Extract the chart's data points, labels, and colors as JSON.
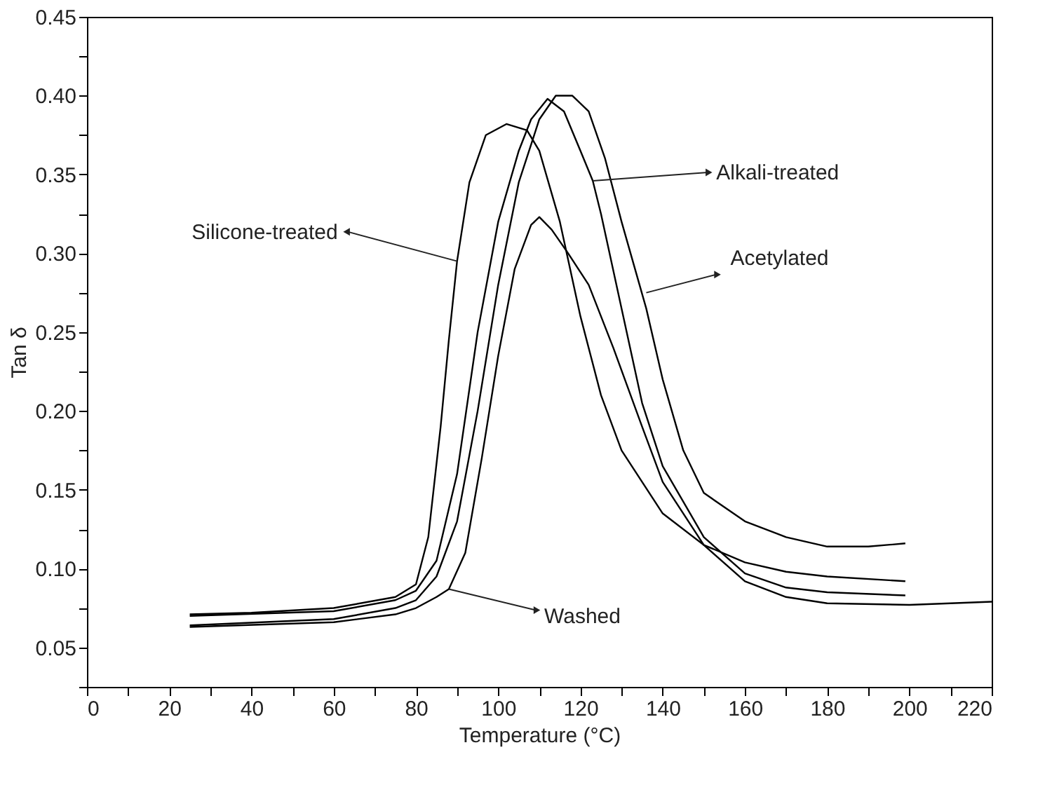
{
  "chart_data": {
    "type": "line",
    "xlabel": "Temperature (°C)",
    "ylabel": "Tan δ",
    "xlim": [
      0,
      220
    ],
    "ylim": [
      0.025,
      0.45
    ],
    "xticks": [
      0,
      {
        "value": 10,
        "label": null
      },
      20,
      {
        "value": 30,
        "label": null
      },
      40,
      {
        "value": 50,
        "label": null
      },
      60,
      {
        "value": 70,
        "label": null
      },
      80,
      {
        "value": 90,
        "label": null
      },
      100,
      {
        "value": 110,
        "label": null
      },
      120,
      {
        "value": 130,
        "label": null
      },
      140,
      {
        "value": 150,
        "label": null
      },
      160,
      {
        "value": 170,
        "label": null
      },
      180,
      {
        "value": 190,
        "label": null
      },
      200,
      {
        "value": 210,
        "label": null
      },
      220
    ],
    "yticks": [
      {
        "value": 0.025,
        "label": null
      },
      {
        "value": 0.05,
        "label": "0.05"
      },
      {
        "value": 0.075,
        "label": null
      },
      {
        "value": 0.1,
        "label": "0.10"
      },
      {
        "value": 0.125,
        "label": null
      },
      {
        "value": 0.15,
        "label": "0.15"
      },
      {
        "value": 0.175,
        "label": null
      },
      {
        "value": 0.2,
        "label": "0.20"
      },
      {
        "value": 0.225,
        "label": null
      },
      {
        "value": 0.25,
        "label": "0.25"
      },
      {
        "value": 0.275,
        "label": null
      },
      {
        "value": 0.3,
        "label": "0.30"
      },
      {
        "value": 0.325,
        "label": null
      },
      {
        "value": 0.35,
        "label": "0.35"
      },
      {
        "value": 0.375,
        "label": null
      },
      {
        "value": 0.4,
        "label": "0.40"
      },
      {
        "value": 0.425,
        "label": null
      },
      {
        "value": 0.45,
        "label": "0.45"
      }
    ],
    "line_style": "solid",
    "grid": false,
    "series": [
      {
        "color": "#000000",
        "x": [
          25,
          40,
          60,
          75,
          80,
          83,
          86,
          88,
          90,
          93,
          97,
          102,
          107,
          110,
          115,
          120,
          125,
          130,
          140,
          150,
          160,
          170,
          180,
          199
        ],
        "values": [
          0.071,
          0.072,
          0.075,
          0.082,
          0.09,
          0.12,
          0.19,
          0.245,
          0.295,
          0.345,
          0.375,
          0.382,
          0.378,
          0.365,
          0.32,
          0.26,
          0.21,
          0.175,
          0.135,
          0.115,
          0.104,
          0.098,
          0.095,
          0.092
        ]
      },
      {
        "color": "#000000",
        "x": [
          25,
          60,
          75,
          80,
          85,
          90,
          95,
          100,
          105,
          108,
          112,
          116,
          120,
          123,
          125,
          130,
          135,
          140,
          150,
          160,
          170,
          180,
          199
        ],
        "values": [
          0.07,
          0.073,
          0.08,
          0.086,
          0.105,
          0.16,
          0.25,
          0.32,
          0.365,
          0.385,
          0.398,
          0.39,
          0.365,
          0.346,
          0.325,
          0.265,
          0.205,
          0.165,
          0.12,
          0.097,
          0.088,
          0.085,
          0.083
        ]
      },
      {
        "color": "#000000",
        "x": [
          25,
          60,
          75,
          80,
          85,
          90,
          95,
          100,
          105,
          110,
          114,
          118,
          122,
          126,
          130,
          136,
          140,
          145,
          150,
          160,
          170,
          180,
          190,
          199
        ],
        "values": [
          0.064,
          0.068,
          0.075,
          0.08,
          0.095,
          0.13,
          0.2,
          0.28,
          0.345,
          0.385,
          0.4,
          0.4,
          0.39,
          0.36,
          0.32,
          0.265,
          0.22,
          0.175,
          0.148,
          0.13,
          0.12,
          0.114,
          0.114,
          0.116
        ]
      },
      {
        "color": "#000000",
        "x": [
          25,
          60,
          75,
          80,
          85,
          88,
          92,
          96,
          100,
          104,
          108,
          110,
          113,
          117,
          122,
          128,
          135,
          140,
          150,
          160,
          170,
          180,
          200,
          220
        ],
        "values": [
          0.063,
          0.066,
          0.071,
          0.075,
          0.082,
          0.087,
          0.11,
          0.17,
          0.235,
          0.29,
          0.318,
          0.323,
          0.315,
          0.3,
          0.28,
          0.24,
          0.19,
          0.155,
          0.115,
          0.092,
          0.082,
          0.078,
          0.077,
          0.079
        ]
      }
    ],
    "annotations": [
      {
        "text": "Silicone-treated",
        "x": 90,
        "y": 0.295
      },
      {
        "text": "Alkali-treated",
        "x": 123,
        "y": 0.346
      },
      {
        "text": "Acetylated",
        "x": 136,
        "y": 0.275
      },
      {
        "text": "Washed",
        "x": 88,
        "y": 0.087
      }
    ]
  }
}
